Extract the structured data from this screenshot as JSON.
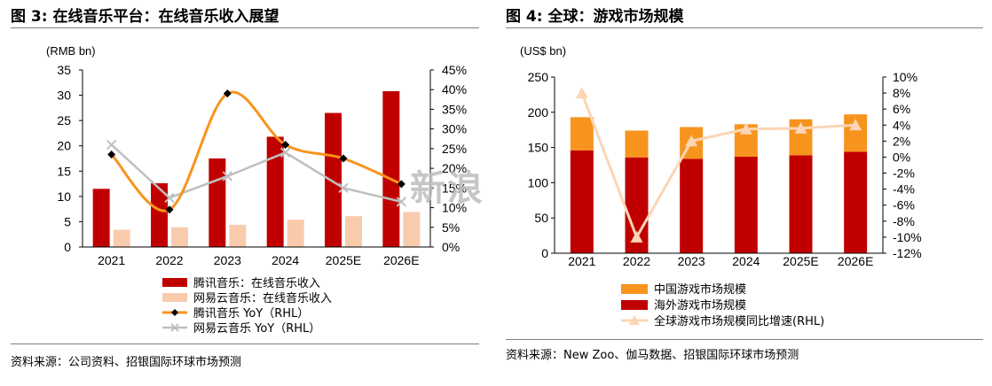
{
  "left": {
    "title": "图 3: 在线音乐平台：在线音乐收入展望",
    "source": "资料来源：公司资料、招银国际环球市场预测"
  },
  "right": {
    "title": "图 4: 全球：游戏市场规模",
    "source": "资料来源：New Zoo、伽马数据、招银国际环球市场预测"
  },
  "watermark": {
    "main": "新浪",
    "sub": ""
  },
  "colors": {
    "dark_red": "#c00000",
    "peach": "#f9cbad",
    "orange": "#f7941d",
    "grey": "#bfbfbf",
    "light_peach": "#fbd5b5",
    "black": "#000000"
  },
  "chart_data": [
    {
      "type": "bar",
      "unit_label": "(RMB bn)",
      "categories": [
        "2021",
        "2022",
        "2023",
        "2024",
        "2025E",
        "2026E"
      ],
      "ylim": [
        0,
        35
      ],
      "yticks": [
        0,
        5,
        10,
        15,
        20,
        25,
        30,
        35
      ],
      "y2lim": [
        0,
        45
      ],
      "y2ticks": [
        "0%",
        "5%",
        "10%",
        "15%",
        "20%",
        "25%",
        "30%",
        "35%",
        "40%",
        "45%"
      ],
      "series": [
        {
          "name": "腾讯音乐：在线音乐收入",
          "type": "bar",
          "axis": "left",
          "values": [
            11.5,
            12.6,
            17.5,
            21.8,
            26.5,
            30.8
          ]
        },
        {
          "name": "网易云音乐：在线音乐收入",
          "type": "bar",
          "axis": "left",
          "values": [
            3.4,
            3.9,
            4.4,
            5.4,
            6.1,
            6.9
          ]
        },
        {
          "name": "腾讯音乐 YoY（RHL）",
          "type": "line",
          "axis": "right",
          "smooth": true,
          "values": [
            23.5,
            9.5,
            39,
            26,
            22.5,
            16
          ]
        },
        {
          "name": "网易云音乐 YoY（RHL）",
          "type": "line",
          "axis": "right",
          "values": [
            26,
            12.5,
            18,
            24,
            15,
            11.5
          ]
        }
      ]
    },
    {
      "type": "bar",
      "unit_label": "(US$ bn)",
      "categories": [
        "2021",
        "2022",
        "2023",
        "2024",
        "2025E",
        "2026E"
      ],
      "ylim": [
        0,
        250
      ],
      "yticks": [
        0,
        50,
        100,
        150,
        200,
        250
      ],
      "y2lim": [
        -12,
        10
      ],
      "y2ticks": [
        "-12%",
        "-10%",
        "-8%",
        "-6%",
        "-4%",
        "-2%",
        "0%",
        "2%",
        "4%",
        "6%",
        "8%",
        "10%"
      ],
      "stacked": true,
      "series": [
        {
          "name": "中国游戏市场规模",
          "type": "bar",
          "axis": "left",
          "values": [
            47,
            38,
            45,
            46,
            51,
            53
          ]
        },
        {
          "name": "海外游戏市场规模",
          "type": "bar",
          "axis": "left",
          "values": [
            146,
            136,
            134,
            137,
            139,
            144
          ]
        },
        {
          "name": "全球游戏市场规模同比增速(RHL)",
          "type": "line",
          "axis": "right",
          "values": [
            8,
            -10,
            2,
            3.5,
            3.6,
            4
          ]
        }
      ]
    }
  ]
}
